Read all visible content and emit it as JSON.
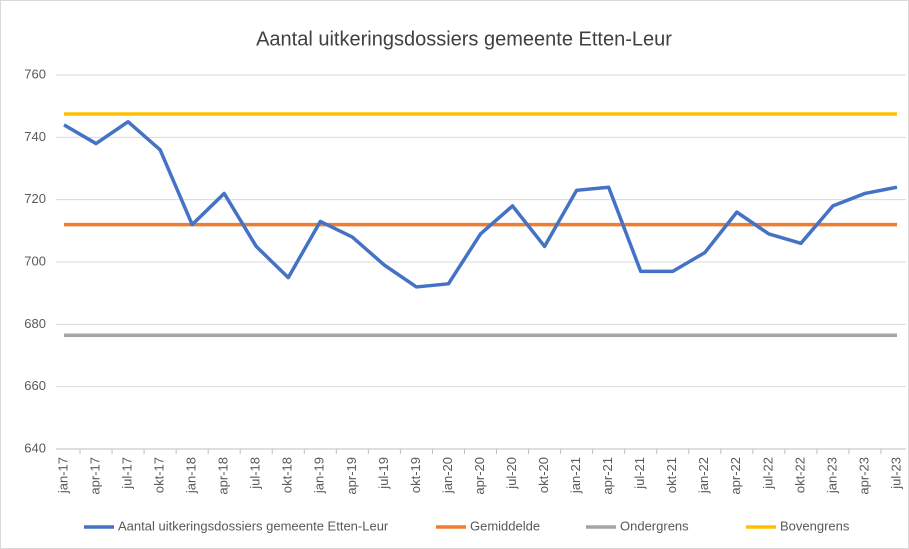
{
  "chart_data": {
    "type": "line",
    "title": "Aantal uitkeringsdossiers gemeente Etten-Leur",
    "categories": [
      "jan-17",
      "apr-17",
      "jul-17",
      "okt-17",
      "jan-18",
      "apr-18",
      "jul-18",
      "okt-18",
      "jan-19",
      "apr-19",
      "jul-19",
      "okt-19",
      "jan-20",
      "apr-20",
      "jul-20",
      "okt-20",
      "jan-21",
      "apr-21",
      "jul-21",
      "okt-21",
      "jan-22",
      "apr-22",
      "jul-22",
      "okt-22",
      "jan-23",
      "apr-23",
      "jul-23"
    ],
    "series": [
      {
        "name": "Aantal uitkeringsdossiers gemeente Etten-Leur",
        "color": "#4472c4",
        "values": [
          744,
          738,
          745,
          736,
          712,
          722,
          705,
          695,
          713,
          708,
          699,
          692,
          693,
          709,
          718,
          705,
          723,
          724,
          697,
          697,
          703,
          716,
          709,
          706,
          718,
          722,
          724
        ]
      },
      {
        "name": "Gemiddelde",
        "color": "#ed7d31",
        "values": [
          712,
          712,
          712,
          712,
          712,
          712,
          712,
          712,
          712,
          712,
          712,
          712,
          712,
          712,
          712,
          712,
          712,
          712,
          712,
          712,
          712,
          712,
          712,
          712,
          712,
          712,
          712
        ]
      },
      {
        "name": "Ondergrens",
        "color": "#a5a5a5",
        "values": [
          676.5,
          676.5,
          676.5,
          676.5,
          676.5,
          676.5,
          676.5,
          676.5,
          676.5,
          676.5,
          676.5,
          676.5,
          676.5,
          676.5,
          676.5,
          676.5,
          676.5,
          676.5,
          676.5,
          676.5,
          676.5,
          676.5,
          676.5,
          676.5,
          676.5,
          676.5,
          676.5
        ]
      },
      {
        "name": "Bovengrens",
        "color": "#ffc000",
        "values": [
          747.5,
          747.5,
          747.5,
          747.5,
          747.5,
          747.5,
          747.5,
          747.5,
          747.5,
          747.5,
          747.5,
          747.5,
          747.5,
          747.5,
          747.5,
          747.5,
          747.5,
          747.5,
          747.5,
          747.5,
          747.5,
          747.5,
          747.5,
          747.5,
          747.5,
          747.5,
          747.5
        ]
      }
    ],
    "ylim": [
      640,
      760
    ],
    "yticks": [
      640,
      660,
      680,
      700,
      720,
      740,
      760
    ],
    "grid": true,
    "legend": "bottom"
  }
}
